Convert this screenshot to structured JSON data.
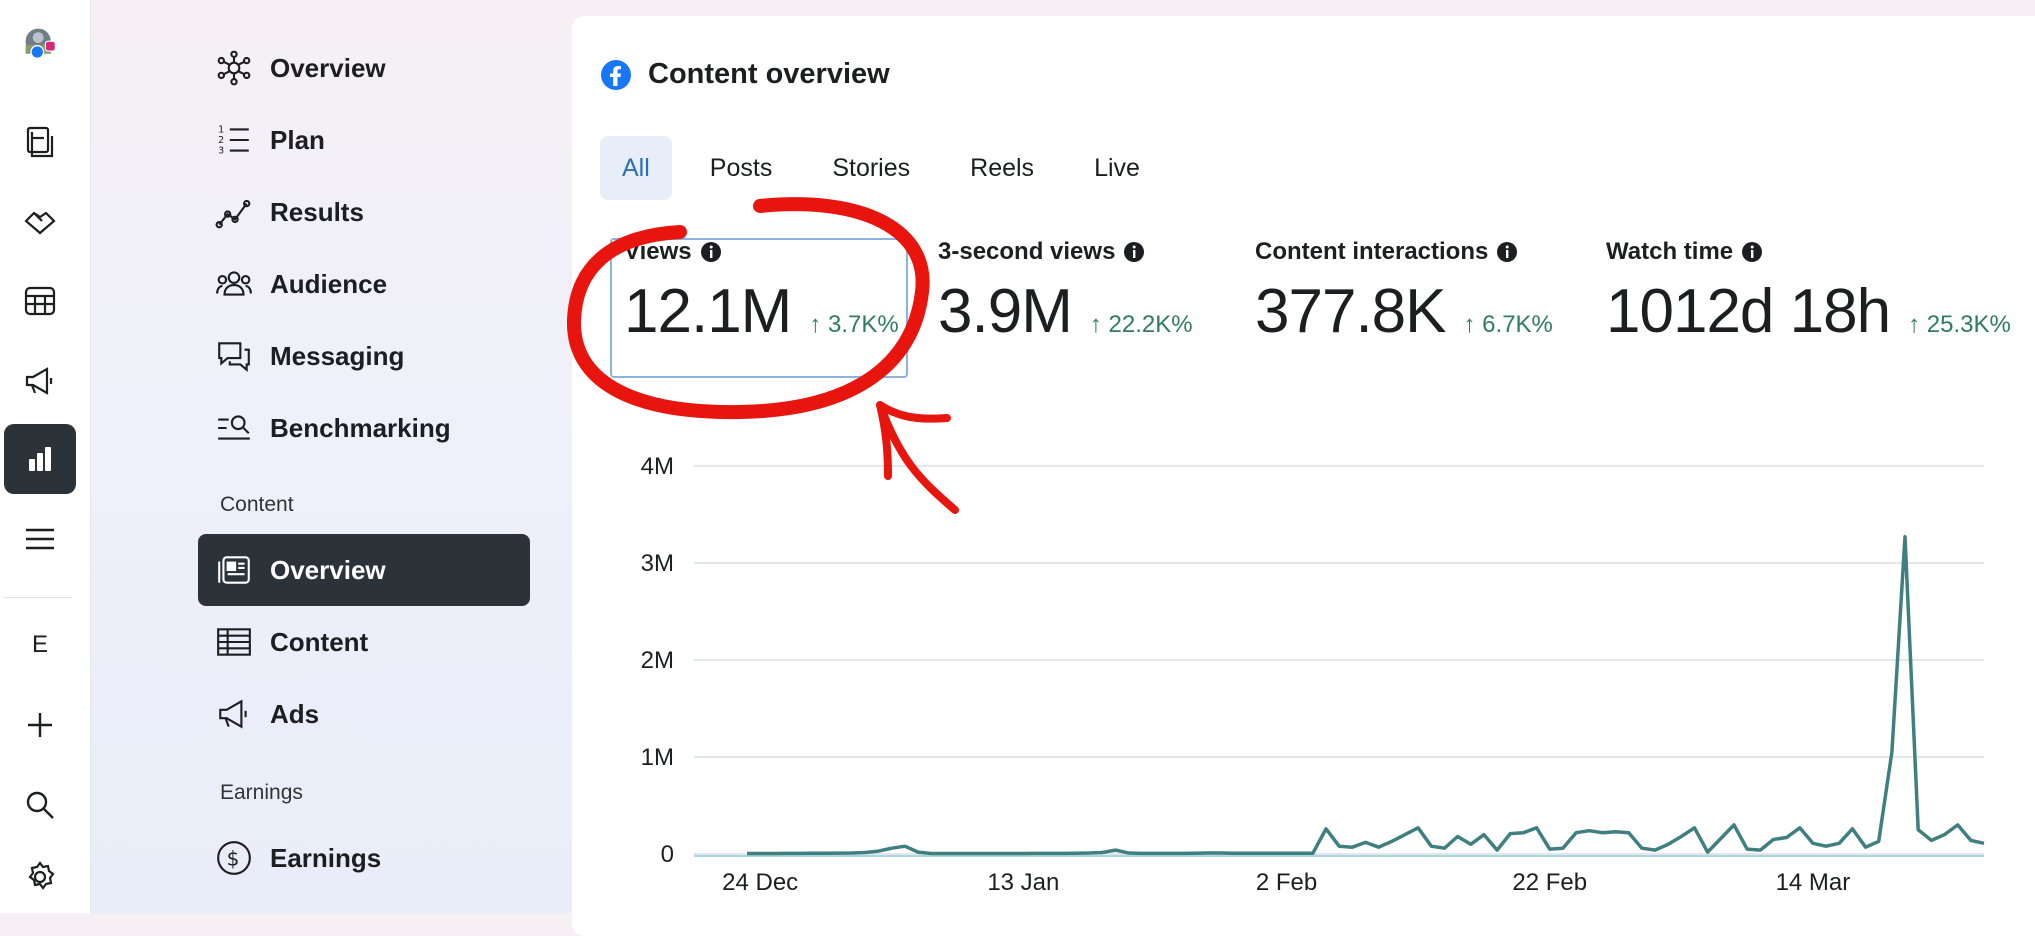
{
  "rail": {
    "letter": "E",
    "icons": [
      "account-avatar",
      "pages-icon",
      "handshake-icon",
      "table-icon",
      "megaphone-icon",
      "insights-bar-chart-icon",
      "menu-icon",
      "plus-icon",
      "search-icon",
      "settings-gear-icon"
    ]
  },
  "sidebar": {
    "items": [
      {
        "label": "Overview",
        "icon": "network-hub-icon"
      },
      {
        "label": "Plan",
        "icon": "numbered-list-icon"
      },
      {
        "label": "Results",
        "icon": "line-trend-icon"
      },
      {
        "label": "Audience",
        "icon": "people-group-icon"
      },
      {
        "label": "Messaging",
        "icon": "chat-bubbles-icon"
      },
      {
        "label": "Benchmarking",
        "icon": "benchmark-search-icon"
      }
    ],
    "content_section": "Content",
    "content_items": [
      {
        "label": "Overview",
        "icon": "content-card-icon",
        "active": true
      },
      {
        "label": "Content",
        "icon": "grid-table-icon"
      },
      {
        "label": "Ads",
        "icon": "megaphone-icon"
      }
    ],
    "earnings_section": "Earnings",
    "earnings_items": [
      {
        "label": "Earnings",
        "icon": "dollar-circle-icon"
      }
    ]
  },
  "card": {
    "title": "Content overview",
    "tabs": [
      {
        "label": "All",
        "active": true
      },
      {
        "label": "Posts"
      },
      {
        "label": "Stories"
      },
      {
        "label": "Reels"
      },
      {
        "label": "Live"
      }
    ],
    "metrics": [
      {
        "label": "Views",
        "value": "12.1M",
        "change": "↑ 3.7K%"
      },
      {
        "label": "3-second views",
        "value": "3.9M",
        "change": "↑ 22.2K%"
      },
      {
        "label": "Content interactions",
        "value": "377.8K",
        "change": "↑ 6.7K%"
      },
      {
        "label": "Watch time",
        "value": "1012d 18h",
        "change": "↑ 25.3K%"
      }
    ]
  },
  "colors": {
    "accent": "#2f6fb0",
    "line": "#3f7f7f",
    "positive": "#2e7d5c",
    "annotation": "#e8140e",
    "active_bg": "#2b3238"
  },
  "chart_data": {
    "type": "line",
    "title": "",
    "xlabel": "",
    "ylabel": "",
    "ylim": [
      0,
      4000000
    ],
    "y_ticks": [
      {
        "value": 0,
        "label": "0"
      },
      {
        "value": 1000000,
        "label": "1M"
      },
      {
        "value": 2000000,
        "label": "2M"
      },
      {
        "value": 3000000,
        "label": "3M"
      },
      {
        "value": 4000000,
        "label": "4M"
      }
    ],
    "x_ticks": [
      {
        "index": 1,
        "label": "24 Dec"
      },
      {
        "index": 21,
        "label": "13 Jan"
      },
      {
        "index": 41,
        "label": "2 Feb"
      },
      {
        "index": 61,
        "label": "22 Feb"
      },
      {
        "index": 81,
        "label": "14 Mar"
      }
    ],
    "grid": true,
    "series": [
      {
        "name": "Views",
        "values": [
          5000,
          5000,
          5000,
          6000,
          6000,
          7000,
          8000,
          9000,
          10000,
          15000,
          30000,
          60000,
          80000,
          20000,
          5000,
          5000,
          5000,
          5000,
          5000,
          5000,
          5000,
          5000,
          6000,
          6000,
          6000,
          8000,
          10000,
          15000,
          40000,
          10000,
          6000,
          6000,
          6000,
          6000,
          8000,
          10000,
          10000,
          8000,
          8000,
          8000,
          8000,
          8000,
          8000,
          8000,
          260000,
          80000,
          70000,
          120000,
          70000,
          130000,
          200000,
          270000,
          80000,
          60000,
          180000,
          100000,
          200000,
          40000,
          210000,
          220000,
          270000,
          50000,
          60000,
          220000,
          240000,
          220000,
          230000,
          220000,
          60000,
          40000,
          100000,
          180000,
          270000,
          20000,
          160000,
          300000,
          50000,
          40000,
          150000,
          170000,
          270000,
          110000,
          80000,
          110000,
          260000,
          70000,
          130000,
          1050000,
          3270000,
          250000,
          140000,
          200000,
          300000,
          140000,
          110000
        ]
      }
    ]
  }
}
